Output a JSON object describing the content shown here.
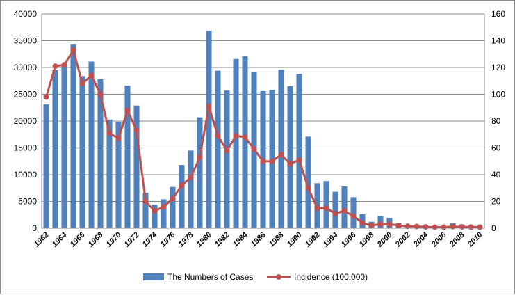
{
  "chart_data": {
    "type": "bar",
    "title": "",
    "xlabel": "",
    "ylabel": "",
    "y2label": "",
    "x": [
      1962,
      1963,
      1964,
      1965,
      1966,
      1967,
      1968,
      1969,
      1970,
      1971,
      1972,
      1973,
      1974,
      1975,
      1976,
      1977,
      1978,
      1979,
      1980,
      1981,
      1982,
      1983,
      1984,
      1985,
      1986,
      1987,
      1988,
      1989,
      1990,
      1991,
      1992,
      1993,
      1994,
      1995,
      1996,
      1997,
      1998,
      1999,
      2000,
      2001,
      2002,
      2003,
      2004,
      2005,
      2006,
      2007,
      2008,
      2009,
      2010
    ],
    "x_tick_labels": [
      "1962",
      "1964",
      "1966",
      "1968",
      "1970",
      "1972",
      "1974",
      "1976",
      "1978",
      "1980",
      "1982",
      "1984",
      "1986",
      "1988",
      "1990",
      "1992",
      "1994",
      "1996",
      "1998",
      "2000",
      "2002",
      "2004",
      "2006",
      "2008",
      "2010"
    ],
    "ylim": [
      0,
      40000
    ],
    "y_ticks": [
      0,
      5000,
      10000,
      15000,
      20000,
      25000,
      30000,
      35000,
      40000
    ],
    "y2lim": [
      0,
      160
    ],
    "y2_ticks": [
      0,
      20,
      40,
      60,
      80,
      100,
      120,
      140,
      160
    ],
    "grid": "horizontal",
    "legend_position": "bottom",
    "series": [
      {
        "name": "The Numbers of Cases",
        "kind": "bar",
        "axis": "left",
        "color": "#4F81BD",
        "values": [
          23100,
          29600,
          30500,
          34400,
          28400,
          31100,
          27800,
          20300,
          19800,
          26600,
          22900,
          6600,
          4400,
          5400,
          7700,
          11800,
          14500,
          20700,
          36900,
          29400,
          25700,
          31600,
          32100,
          29100,
          25600,
          25800,
          29600,
          26500,
          28800,
          17100,
          8400,
          8800,
          6800,
          7800,
          5800,
          2600,
          1200,
          2300,
          1900,
          1000,
          400,
          300,
          200,
          150,
          250,
          900,
          700,
          400,
          300
        ]
      },
      {
        "name": "Incidence (100,000)",
        "kind": "line",
        "axis": "right",
        "color": "#C0504D",
        "values": [
          98,
          121,
          122,
          133,
          108,
          114,
          100,
          71,
          67,
          88,
          73,
          20,
          13,
          16,
          22,
          32,
          38,
          53,
          91,
          69,
          58,
          69,
          68,
          59,
          50,
          50,
          55,
          48,
          51,
          30,
          15,
          15,
          11,
          13,
          9,
          4,
          2,
          3,
          3,
          2,
          1.5,
          1.3,
          1,
          0.8,
          0.8,
          1.2,
          1,
          0.9,
          0.8
        ]
      }
    ]
  }
}
